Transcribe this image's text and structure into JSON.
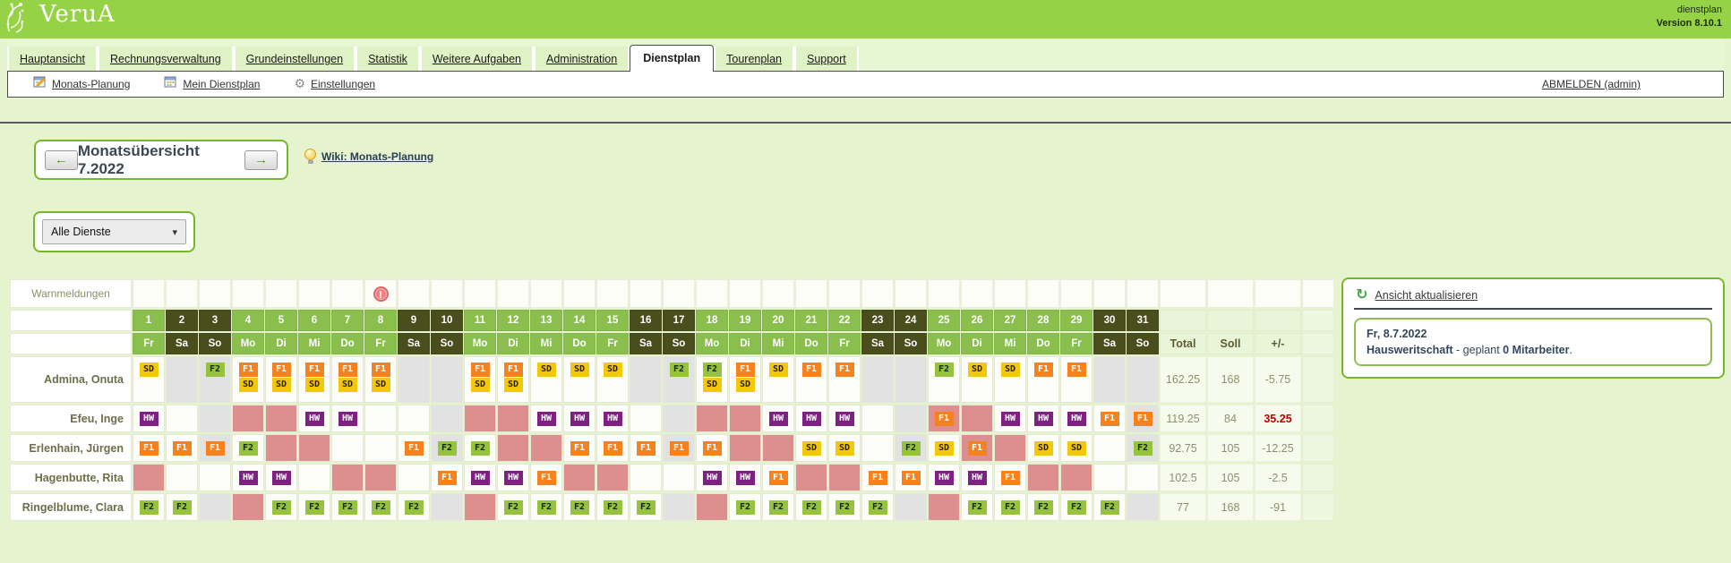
{
  "header": {
    "logo": "VeruA",
    "app_name": "dienstplan",
    "version": "Version 8.10.1"
  },
  "tabs": [
    {
      "label": "Hauptansicht",
      "active": false
    },
    {
      "label": "Rechnungsverwaltung",
      "active": false
    },
    {
      "label": "Grundeinstellungen",
      "active": false
    },
    {
      "label": "Statistik",
      "active": false
    },
    {
      "label": "Weitere Aufgaben",
      "active": false
    },
    {
      "label": "Administration",
      "active": false
    },
    {
      "label": "Dienstplan",
      "active": true
    },
    {
      "label": "Tourenplan",
      "active": false
    },
    {
      "label": "Support",
      "active": false
    }
  ],
  "toolbar": {
    "items": [
      {
        "label": "Monats-Planung",
        "icon": "calendar-edit-icon"
      },
      {
        "label": "Mein Dienstplan",
        "icon": "calendar-icon"
      },
      {
        "label": "Einstellungen",
        "icon": "gear-icon"
      }
    ],
    "logout_label": "ABMELDEN (admin)"
  },
  "month_nav": {
    "title": "Monatsübersicht 7.2022",
    "wiki_label": "Wiki: Monats-Planung"
  },
  "filter": {
    "selected": "Alle Dienste"
  },
  "icons": {
    "arrow_left": "←",
    "arrow_right": "→",
    "chevron_down": "▾",
    "refresh": "↻",
    "gear": "⚙"
  },
  "roster": {
    "warn_label": "Warnmeldungen",
    "warning_day": 8,
    "warning_glyph": "!",
    "columns": [
      "Total",
      "Soll",
      "+/-"
    ],
    "days": [
      {
        "n": "1",
        "wd": "Fr"
      },
      {
        "n": "2",
        "wd": "Sa"
      },
      {
        "n": "3",
        "wd": "So"
      },
      {
        "n": "4",
        "wd": "Mo"
      },
      {
        "n": "5",
        "wd": "Di"
      },
      {
        "n": "6",
        "wd": "Mi"
      },
      {
        "n": "7",
        "wd": "Do"
      },
      {
        "n": "8",
        "wd": "Fr"
      },
      {
        "n": "9",
        "wd": "Sa"
      },
      {
        "n": "10",
        "wd": "So"
      },
      {
        "n": "11",
        "wd": "Mo"
      },
      {
        "n": "12",
        "wd": "Di"
      },
      {
        "n": "13",
        "wd": "Mi"
      },
      {
        "n": "14",
        "wd": "Do"
      },
      {
        "n": "15",
        "wd": "Fr"
      },
      {
        "n": "16",
        "wd": "Sa"
      },
      {
        "n": "17",
        "wd": "So"
      },
      {
        "n": "18",
        "wd": "Mo"
      },
      {
        "n": "19",
        "wd": "Di"
      },
      {
        "n": "20",
        "wd": "Mi"
      },
      {
        "n": "21",
        "wd": "Do"
      },
      {
        "n": "22",
        "wd": "Fr"
      },
      {
        "n": "23",
        "wd": "Sa"
      },
      {
        "n": "24",
        "wd": "So"
      },
      {
        "n": "25",
        "wd": "Mo"
      },
      {
        "n": "26",
        "wd": "Di"
      },
      {
        "n": "27",
        "wd": "Mi"
      },
      {
        "n": "28",
        "wd": "Do"
      },
      {
        "n": "29",
        "wd": "Fr"
      },
      {
        "n": "30",
        "wd": "Sa"
      },
      {
        "n": "31",
        "wd": "So"
      }
    ],
    "shift_types": {
      "SD": {
        "bg": "#f4c80a",
        "fg": "#2a2000"
      },
      "F1": {
        "bg": "#f5821f",
        "fg": "#ffffff"
      },
      "F2": {
        "bg": "#96c33e",
        "fg": "#16230a"
      },
      "HW": {
        "bg": "#7e2183",
        "fg": "#ffffff"
      }
    },
    "cell_colors": {
      "w": "#fdfdf9",
      "g": "#e2e2e2",
      "p": "#dd8e8e"
    },
    "employees": [
      {
        "name": "Admina, Onuta",
        "total": "162.25",
        "soll": "168",
        "diff": "-5.75",
        "diff_alert": false,
        "bg": "wggwwwwwggwwwwwggwwwwwggwwwwwgg",
        "shifts": {
          "1": [
            "SD"
          ],
          "3": [
            "F2"
          ],
          "4": [
            "F1",
            "SD"
          ],
          "5": [
            "F1",
            "SD"
          ],
          "6": [
            "F1",
            "SD"
          ],
          "7": [
            "F1",
            "SD"
          ],
          "8": [
            "F1",
            "SD"
          ],
          "11": [
            "F1",
            "SD"
          ],
          "12": [
            "F1",
            "SD"
          ],
          "13": [
            "SD"
          ],
          "14": [
            "SD"
          ],
          "15": [
            "SD"
          ],
          "17": [
            "F2"
          ],
          "18": [
            "F2",
            "SD"
          ],
          "19": [
            "F1",
            "SD"
          ],
          "20": [
            "SD"
          ],
          "21": [
            "F1"
          ],
          "22": [
            "F1"
          ],
          "25": [
            "F2"
          ],
          "26": [
            "SD"
          ],
          "27": [
            "SD"
          ],
          "28": [
            "F1"
          ],
          "29": [
            "F1"
          ]
        }
      },
      {
        "name": "Efeu, Inge",
        "total": "119.25",
        "soll": "84",
        "diff": "35.25",
        "diff_alert": true,
        "bg": "wwgppwwwwgppwwwwgppwwwwgppwwwwg",
        "shifts": {
          "1": [
            "HW"
          ],
          "6": [
            "HW"
          ],
          "7": [
            "HW"
          ],
          "13": [
            "HW"
          ],
          "14": [
            "HW"
          ],
          "15": [
            "HW"
          ],
          "20": [
            "HW"
          ],
          "21": [
            "HW"
          ],
          "22": [
            "HW"
          ],
          "25": [
            "F1"
          ],
          "27": [
            "HW"
          ],
          "28": [
            "HW"
          ],
          "29": [
            "HW"
          ],
          "30": [
            "F1"
          ],
          "31": [
            "F1"
          ]
        }
      },
      {
        "name": "Erlenhain, Jürgen",
        "total": "92.75",
        "soll": "105",
        "diff": "-12.25",
        "diff_alert": false,
        "bg": "wwgwppwwwgwppwwwgwppwwwgwppwwwg",
        "shifts": {
          "1": [
            "F1"
          ],
          "2": [
            "F1"
          ],
          "3": [
            "F1"
          ],
          "4": [
            "F2"
          ],
          "9": [
            "F1"
          ],
          "10": [
            "F2"
          ],
          "11": [
            "F2"
          ],
          "14": [
            "F1"
          ],
          "15": [
            "F1"
          ],
          "16": [
            "F1"
          ],
          "17": [
            "F1"
          ],
          "18": [
            "F1"
          ],
          "21": [
            "SD"
          ],
          "22": [
            "SD"
          ],
          "24": [
            "F2"
          ],
          "25": [
            "SD"
          ],
          "26": [
            "F1"
          ],
          "28": [
            "SD"
          ],
          "29": [
            "SD"
          ],
          "31": [
            "F2"
          ]
        }
      },
      {
        "name": "Hagenbutte, Rita",
        "total": "102.5",
        "soll": "105",
        "diff": "-2.5",
        "diff_alert": false,
        "bg": "pwwwwwppwwwwwppwwwwwppwwwwwppww",
        "shifts": {
          "4": [
            "HW"
          ],
          "5": [
            "HW"
          ],
          "10": [
            "F1"
          ],
          "11": [
            "HW"
          ],
          "12": [
            "HW"
          ],
          "13": [
            "F1"
          ],
          "18": [
            "HW"
          ],
          "19": [
            "HW"
          ],
          "20": [
            "F1"
          ],
          "23": [
            "F1"
          ],
          "24": [
            "F1"
          ],
          "25": [
            "HW"
          ],
          "26": [
            "HW"
          ],
          "27": [
            "F1"
          ]
        }
      },
      {
        "name": "Ringelblume, Clara",
        "total": "77",
        "soll": "168",
        "diff": "-91",
        "diff_alert": false,
        "bg": "wwgpwwwwwgpwwwwwgpwwwwwgpwwwwwg",
        "shifts": {
          "1": [
            "F2"
          ],
          "2": [
            "F2"
          ],
          "5": [
            "F2"
          ],
          "6": [
            "F2"
          ],
          "7": [
            "F2"
          ],
          "8": [
            "F2"
          ],
          "9": [
            "F2"
          ],
          "12": [
            "F2"
          ],
          "13": [
            "F2"
          ],
          "14": [
            "F2"
          ],
          "15": [
            "F2"
          ],
          "16": [
            "F2"
          ],
          "19": [
            "F2"
          ],
          "20": [
            "F2"
          ],
          "21": [
            "F2"
          ],
          "22": [
            "F2"
          ],
          "23": [
            "F2"
          ],
          "26": [
            "F2"
          ],
          "27": [
            "F2"
          ],
          "28": [
            "F2"
          ],
          "29": [
            "F2"
          ],
          "30": [
            "F2"
          ]
        }
      }
    ]
  },
  "side_panel": {
    "refresh_label": "Ansicht aktualisieren",
    "date": "Fr, 8.7.2022",
    "department": "Hausweritschaft",
    "mid": " - geplant ",
    "count": "0 Mitarbeiter",
    "period": "."
  }
}
